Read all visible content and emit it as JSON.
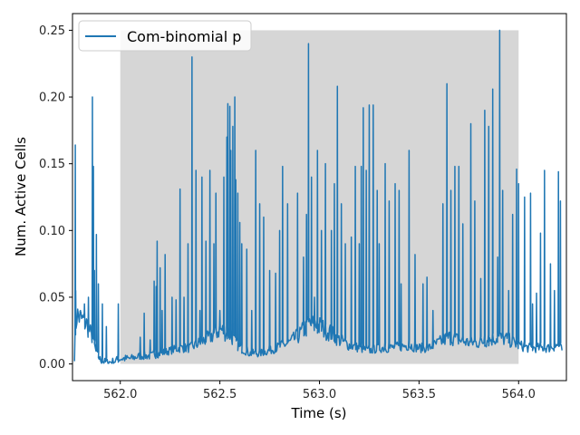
{
  "chart_data": {
    "type": "line",
    "title": "",
    "xlabel": "Time (s)",
    "ylabel": "Num. Active Cells",
    "xlim": [
      561.76,
      564.24
    ],
    "ylim": [
      -0.0125,
      0.2625
    ],
    "x_ticks": [
      562.0,
      562.5,
      563.0,
      563.5,
      564.0
    ],
    "x_tick_labels": [
      "562.0",
      "562.5",
      "563.0",
      "563.5",
      "564.0"
    ],
    "y_ticks": [
      0.0,
      0.05,
      0.1,
      0.15,
      0.2,
      0.25
    ],
    "y_tick_labels": [
      "0.00",
      "0.05",
      "0.10",
      "0.15",
      "0.20",
      "0.25"
    ],
    "grid": false,
    "legend_position": "top-left",
    "shaded_region": {
      "x": [
        562.0,
        564.0
      ],
      "y": [
        0.0,
        0.25
      ],
      "color": "#d6d6d6"
    },
    "series": [
      {
        "name": "Com-binomial p",
        "color": "#1f77b4",
        "x_start": 561.77,
        "x_end": 564.22,
        "baseline_points": [
          [
            561.77,
            0.005
          ],
          [
            561.78,
            0.037
          ],
          [
            561.8,
            0.034
          ],
          [
            561.83,
            0.03
          ],
          [
            561.86,
            0.02
          ],
          [
            561.88,
            0.008
          ],
          [
            561.9,
            0.003
          ],
          [
            561.93,
            0.001
          ],
          [
            561.97,
            0.002
          ],
          [
            562.0,
            0.004
          ],
          [
            562.05,
            0.004
          ],
          [
            562.1,
            0.006
          ],
          [
            562.15,
            0.006
          ],
          [
            562.2,
            0.008
          ],
          [
            562.25,
            0.01
          ],
          [
            562.3,
            0.012
          ],
          [
            562.35,
            0.012
          ],
          [
            562.4,
            0.016
          ],
          [
            562.45,
            0.02
          ],
          [
            562.5,
            0.026
          ],
          [
            562.55,
            0.022
          ],
          [
            562.6,
            0.012
          ],
          [
            562.65,
            0.008
          ],
          [
            562.7,
            0.008
          ],
          [
            562.75,
            0.01
          ],
          [
            562.8,
            0.013
          ],
          [
            562.85,
            0.016
          ],
          [
            562.9,
            0.022
          ],
          [
            562.95,
            0.03
          ],
          [
            563.0,
            0.028
          ],
          [
            563.05,
            0.024
          ],
          [
            563.1,
            0.018
          ],
          [
            563.15,
            0.014
          ],
          [
            563.2,
            0.012
          ],
          [
            563.25,
            0.01
          ],
          [
            563.3,
            0.012
          ],
          [
            563.35,
            0.012
          ],
          [
            563.4,
            0.013
          ],
          [
            563.45,
            0.014
          ],
          [
            563.5,
            0.012
          ],
          [
            563.55,
            0.012
          ],
          [
            563.6,
            0.016
          ],
          [
            563.65,
            0.02
          ],
          [
            563.7,
            0.018
          ],
          [
            563.75,
            0.016
          ],
          [
            563.8,
            0.016
          ],
          [
            563.85,
            0.018
          ],
          [
            563.9,
            0.02
          ],
          [
            563.95,
            0.018
          ],
          [
            564.0,
            0.014
          ],
          [
            564.05,
            0.012
          ],
          [
            564.1,
            0.012
          ],
          [
            564.15,
            0.012
          ],
          [
            564.2,
            0.014
          ],
          [
            564.22,
            0.01
          ]
        ],
        "spikes": [
          [
            561.774,
            0.164
          ],
          [
            561.776,
            0.055
          ],
          [
            561.8,
            0.04
          ],
          [
            561.82,
            0.045
          ],
          [
            561.84,
            0.05
          ],
          [
            561.86,
            0.2
          ],
          [
            561.865,
            0.148
          ],
          [
            561.87,
            0.07
          ],
          [
            561.88,
            0.097
          ],
          [
            561.89,
            0.06
          ],
          [
            561.91,
            0.045
          ],
          [
            561.93,
            0.028
          ],
          [
            561.99,
            0.045
          ],
          [
            562.1,
            0.02
          ],
          [
            562.12,
            0.038
          ],
          [
            562.15,
            0.018
          ],
          [
            562.17,
            0.062
          ],
          [
            562.18,
            0.058
          ],
          [
            562.185,
            0.092
          ],
          [
            562.2,
            0.072
          ],
          [
            562.21,
            0.04
          ],
          [
            562.225,
            0.082
          ],
          [
            562.26,
            0.05
          ],
          [
            562.28,
            0.048
          ],
          [
            562.3,
            0.131
          ],
          [
            562.32,
            0.05
          ],
          [
            562.34,
            0.09
          ],
          [
            562.36,
            0.23
          ],
          [
            562.38,
            0.145
          ],
          [
            562.4,
            0.04
          ],
          [
            562.41,
            0.14
          ],
          [
            562.43,
            0.092
          ],
          [
            562.45,
            0.145
          ],
          [
            562.47,
            0.09
          ],
          [
            562.48,
            0.128
          ],
          [
            562.5,
            0.04
          ],
          [
            562.52,
            0.14
          ],
          [
            562.535,
            0.17
          ],
          [
            562.54,
            0.195
          ],
          [
            562.55,
            0.193
          ],
          [
            562.555,
            0.16
          ],
          [
            562.565,
            0.178
          ],
          [
            562.575,
            0.2
          ],
          [
            562.58,
            0.138
          ],
          [
            562.59,
            0.128
          ],
          [
            562.6,
            0.106
          ],
          [
            562.61,
            0.09
          ],
          [
            562.635,
            0.086
          ],
          [
            562.66,
            0.04
          ],
          [
            562.68,
            0.16
          ],
          [
            562.7,
            0.12
          ],
          [
            562.72,
            0.11
          ],
          [
            562.75,
            0.07
          ],
          [
            562.78,
            0.068
          ],
          [
            562.8,
            0.1
          ],
          [
            562.815,
            0.148
          ],
          [
            562.84,
            0.12
          ],
          [
            562.89,
            0.128
          ],
          [
            562.92,
            0.08
          ],
          [
            562.935,
            0.112
          ],
          [
            562.945,
            0.24
          ],
          [
            562.96,
            0.14
          ],
          [
            562.975,
            0.05
          ],
          [
            562.99,
            0.16
          ],
          [
            563.01,
            0.1
          ],
          [
            563.03,
            0.15
          ],
          [
            563.06,
            0.1
          ],
          [
            563.075,
            0.135
          ],
          [
            563.09,
            0.208
          ],
          [
            563.11,
            0.12
          ],
          [
            563.13,
            0.09
          ],
          [
            563.16,
            0.095
          ],
          [
            563.18,
            0.148
          ],
          [
            563.2,
            0.09
          ],
          [
            563.21,
            0.148
          ],
          [
            563.22,
            0.192
          ],
          [
            563.235,
            0.145
          ],
          [
            563.25,
            0.194
          ],
          [
            563.27,
            0.194
          ],
          [
            563.29,
            0.13
          ],
          [
            563.3,
            0.09
          ],
          [
            563.33,
            0.15
          ],
          [
            563.35,
            0.122
          ],
          [
            563.38,
            0.135
          ],
          [
            563.4,
            0.13
          ],
          [
            563.41,
            0.06
          ],
          [
            563.45,
            0.16
          ],
          [
            563.48,
            0.082
          ],
          [
            563.52,
            0.06
          ],
          [
            563.54,
            0.065
          ],
          [
            563.57,
            0.04
          ],
          [
            563.62,
            0.12
          ],
          [
            563.64,
            0.21
          ],
          [
            563.66,
            0.13
          ],
          [
            563.68,
            0.148
          ],
          [
            563.7,
            0.148
          ],
          [
            563.72,
            0.105
          ],
          [
            563.76,
            0.18
          ],
          [
            563.78,
            0.122
          ],
          [
            563.81,
            0.064
          ],
          [
            563.83,
            0.19
          ],
          [
            563.85,
            0.178
          ],
          [
            563.87,
            0.206
          ],
          [
            563.895,
            0.08
          ],
          [
            563.905,
            0.25
          ],
          [
            563.92,
            0.13
          ],
          [
            563.95,
            0.055
          ],
          [
            563.97,
            0.112
          ],
          [
            563.99,
            0.146
          ],
          [
            564.0,
            0.135
          ],
          [
            564.03,
            0.125
          ],
          [
            564.06,
            0.128
          ],
          [
            564.07,
            0.045
          ],
          [
            564.09,
            0.053
          ],
          [
            564.11,
            0.098
          ],
          [
            564.13,
            0.145
          ],
          [
            564.16,
            0.075
          ],
          [
            564.18,
            0.055
          ],
          [
            564.2,
            0.144
          ],
          [
            564.21,
            0.122
          ],
          [
            564.22,
            0.016
          ]
        ]
      }
    ]
  }
}
